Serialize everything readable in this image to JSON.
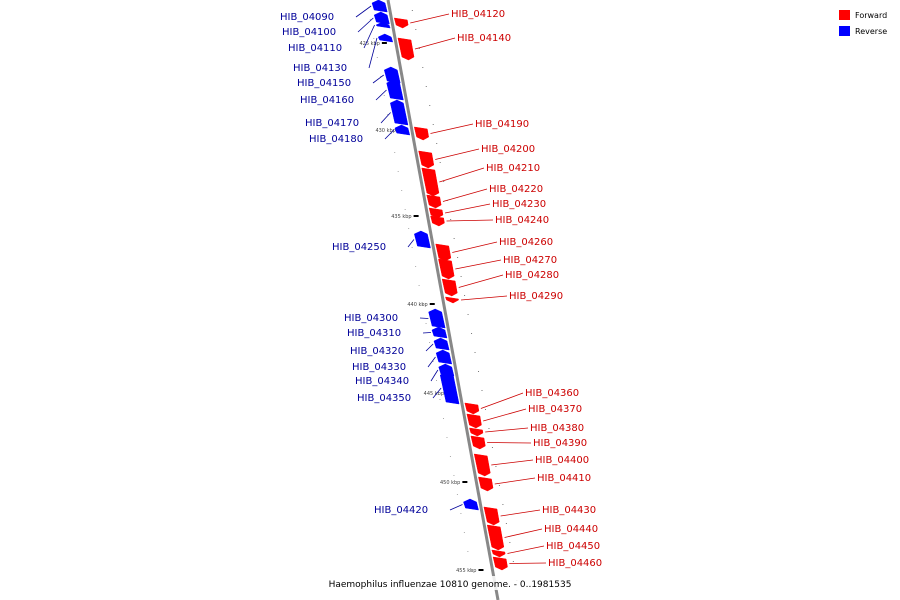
{
  "caption": "Haemophilus influenzae 10810 genome. - 0..1981535",
  "legend": [
    {
      "label": "Forward",
      "color": "#ff0000"
    },
    {
      "label": "Reverse",
      "color": "#0000ff"
    }
  ],
  "ticks": [
    "425 kbp",
    "430 kbp",
    "435 kbp",
    "440 kbp",
    "445 kbp",
    "450 kbp",
    "455 kbp"
  ],
  "colors": {
    "forward": "#ff0000",
    "reverse": "#0000ff",
    "forward_label": "#cc0000",
    "reverse_label": "#000099",
    "backbone": "#888888"
  },
  "genes": [
    {
      "name": "HIB_04090",
      "strand": "reverse"
    },
    {
      "name": "HIB_04100",
      "strand": "reverse"
    },
    {
      "name": "HIB_04110",
      "strand": "reverse"
    },
    {
      "name": "HIB_04120",
      "strand": "forward"
    },
    {
      "name": "HIB_04130",
      "strand": "reverse"
    },
    {
      "name": "HIB_04140",
      "strand": "forward"
    },
    {
      "name": "HIB_04150",
      "strand": "reverse"
    },
    {
      "name": "HIB_04160",
      "strand": "reverse"
    },
    {
      "name": "HIB_04170",
      "strand": "reverse"
    },
    {
      "name": "HIB_04180",
      "strand": "reverse"
    },
    {
      "name": "HIB_04190",
      "strand": "forward"
    },
    {
      "name": "HIB_04200",
      "strand": "forward"
    },
    {
      "name": "HIB_04210",
      "strand": "forward"
    },
    {
      "name": "HIB_04220",
      "strand": "forward"
    },
    {
      "name": "HIB_04230",
      "strand": "forward"
    },
    {
      "name": "HIB_04240",
      "strand": "forward"
    },
    {
      "name": "HIB_04250",
      "strand": "reverse"
    },
    {
      "name": "HIB_04260",
      "strand": "forward"
    },
    {
      "name": "HIB_04270",
      "strand": "forward"
    },
    {
      "name": "HIB_04280",
      "strand": "forward"
    },
    {
      "name": "HIB_04290",
      "strand": "forward"
    },
    {
      "name": "HIB_04300",
      "strand": "reverse"
    },
    {
      "name": "HIB_04310",
      "strand": "reverse"
    },
    {
      "name": "HIB_04320",
      "strand": "reverse"
    },
    {
      "name": "HIB_04330",
      "strand": "reverse"
    },
    {
      "name": "HIB_04340",
      "strand": "reverse"
    },
    {
      "name": "HIB_04350",
      "strand": "reverse"
    },
    {
      "name": "HIB_04360",
      "strand": "forward"
    },
    {
      "name": "HIB_04370",
      "strand": "forward"
    },
    {
      "name": "HIB_04380",
      "strand": "forward"
    },
    {
      "name": "HIB_04390",
      "strand": "forward"
    },
    {
      "name": "HIB_04400",
      "strand": "forward"
    },
    {
      "name": "HIB_04410",
      "strand": "forward"
    },
    {
      "name": "HIB_04420",
      "strand": "reverse"
    },
    {
      "name": "HIB_04430",
      "strand": "forward"
    },
    {
      "name": "HIB_04440",
      "strand": "forward"
    },
    {
      "name": "HIB_04450",
      "strand": "forward"
    },
    {
      "name": "HIB_04460",
      "strand": "forward"
    }
  ]
}
